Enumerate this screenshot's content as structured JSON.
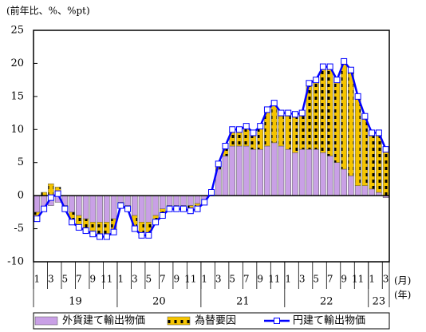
{
  "chart_data": {
    "type": "stacked-bar-line",
    "unit_label": "(前年比、%、%pt)",
    "month_unit": "(月)",
    "year_unit": "(年)",
    "categories": [
      "1",
      null,
      "3",
      null,
      "5",
      null,
      "7",
      null,
      "9",
      null,
      "11",
      null,
      "1",
      null,
      "3",
      null,
      "5",
      null,
      "7",
      null,
      "9",
      null,
      "11",
      null,
      "1",
      null,
      "3",
      null,
      "5",
      null,
      "7",
      null,
      "9",
      null,
      "11",
      null,
      "1",
      null,
      "3",
      null,
      "5",
      null,
      "7",
      null,
      "9",
      null,
      "11",
      null,
      "1",
      null,
      "3"
    ],
    "years": [
      "19",
      "20",
      "21",
      "22",
      "23"
    ],
    "ylim": [
      -10,
      25
    ],
    "yticks": [
      -10,
      -5,
      0,
      5,
      10,
      15,
      20,
      25
    ],
    "series": [
      {
        "name": "外貨建て輸出物価",
        "color": "#c9a0e6",
        "kind": "bar",
        "values": [
          -2.5,
          -2,
          -1.5,
          -1,
          -1.5,
          -2.5,
          -3,
          -3.5,
          -4,
          -4,
          -4,
          -3.5,
          -1,
          -1.5,
          -3,
          -4,
          -4,
          -3,
          -2,
          -1.5,
          -1.5,
          -1.5,
          -1.5,
          -1.2,
          -1,
          0.5,
          4,
          6,
          7.5,
          7.5,
          7.5,
          7,
          7,
          7.5,
          8,
          7.5,
          7,
          6.5,
          7,
          7,
          7,
          6.5,
          6,
          5,
          4,
          3,
          1.5,
          1.5,
          1,
          0.5,
          -0.3
        ]
      },
      {
        "name": "為替要因",
        "color": "#f5c400",
        "kind": "bar",
        "values": [
          -1,
          0.5,
          1.8,
          1.3,
          -0.5,
          -1.5,
          -1.8,
          -1.8,
          -1.8,
          -2.2,
          -2.2,
          -2,
          -0.5,
          -0.5,
          -2,
          -2,
          -2,
          -1,
          -1,
          -0.5,
          -0.5,
          -0.5,
          -0.8,
          -0.8,
          0,
          0,
          0.8,
          1.5,
          2.5,
          2.5,
          3,
          2.5,
          3.5,
          5.5,
          6,
          5,
          5.5,
          5.8,
          5.5,
          10,
          10.5,
          13,
          13.5,
          12.5,
          16.3,
          16,
          13.5,
          10.5,
          8.5,
          9,
          7.3
        ]
      },
      {
        "name": "円建て輸出物価",
        "color": "#0000ff",
        "kind": "line",
        "values": [
          -3.5,
          -2,
          -0.3,
          0.3,
          -2,
          -4,
          -4.8,
          -5.3,
          -5.8,
          -6.2,
          -6.2,
          -5.5,
          -1.5,
          -2,
          -5,
          -6,
          -6,
          -4,
          -3,
          -2,
          -2,
          -2,
          -2.3,
          -2,
          -1,
          0.5,
          4.8,
          7.5,
          10,
          10,
          10.5,
          9.5,
          10.5,
          13,
          14,
          12.5,
          12.5,
          12.3,
          12.5,
          17,
          17.5,
          19.5,
          19.5,
          17.5,
          20.3,
          19,
          15,
          12,
          9.5,
          9.5,
          7
        ]
      }
    ]
  }
}
